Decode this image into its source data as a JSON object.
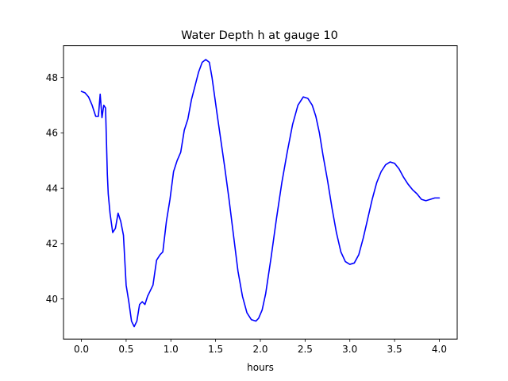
{
  "chart_data": {
    "type": "line",
    "title": "Water Depth h at gauge 10",
    "xlabel": "hours",
    "ylabel": "",
    "xlim": [
      -0.2,
      4.2
    ],
    "ylim": [
      38.55,
      49.15
    ],
    "xticks": [
      "0.0",
      "0.5",
      "1.0",
      "1.5",
      "2.0",
      "2.5",
      "3.0",
      "3.5",
      "4.0"
    ],
    "yticks": [
      "40",
      "42",
      "44",
      "46",
      "48"
    ],
    "grid": false,
    "series": [
      {
        "color": "#0000ff",
        "x": [
          0.0,
          0.04,
          0.08,
          0.12,
          0.16,
          0.19,
          0.21,
          0.23,
          0.25,
          0.27,
          0.29,
          0.3,
          0.32,
          0.35,
          0.38,
          0.41,
          0.44,
          0.47,
          0.5,
          0.53,
          0.56,
          0.59,
          0.62,
          0.65,
          0.68,
          0.71,
          0.74,
          0.77,
          0.8,
          0.84,
          0.88,
          0.91,
          0.95,
          0.99,
          1.03,
          1.07,
          1.11,
          1.15,
          1.19,
          1.23,
          1.27,
          1.31,
          1.35,
          1.39,
          1.43,
          1.46,
          1.49,
          1.52,
          1.56,
          1.6,
          1.65,
          1.7,
          1.75,
          1.8,
          1.85,
          1.9,
          1.95,
          1.98,
          2.02,
          2.06,
          2.12,
          2.18,
          2.24,
          2.3,
          2.36,
          2.42,
          2.48,
          2.53,
          2.58,
          2.62,
          2.66,
          2.7,
          2.75,
          2.8,
          2.85,
          2.9,
          2.95,
          3.0,
          3.05,
          3.1,
          3.15,
          3.2,
          3.25,
          3.3,
          3.35,
          3.4,
          3.45,
          3.5,
          3.55,
          3.6,
          3.65,
          3.7,
          3.75,
          3.8,
          3.85,
          3.9,
          3.95,
          4.0
        ],
        "y": [
          47.5,
          47.45,
          47.3,
          47.0,
          46.6,
          46.6,
          47.4,
          46.55,
          47.0,
          46.9,
          44.5,
          43.8,
          43.1,
          42.4,
          42.55,
          43.1,
          42.8,
          42.3,
          40.5,
          39.9,
          39.2,
          39.0,
          39.2,
          39.8,
          39.9,
          39.8,
          40.1,
          40.3,
          40.5,
          41.4,
          41.6,
          41.7,
          42.8,
          43.6,
          44.6,
          45.0,
          45.3,
          46.1,
          46.5,
          47.2,
          47.7,
          48.2,
          48.55,
          48.65,
          48.55,
          48.0,
          47.3,
          46.6,
          45.7,
          44.8,
          43.6,
          42.3,
          41.0,
          40.1,
          39.5,
          39.25,
          39.2,
          39.3,
          39.6,
          40.2,
          41.5,
          42.9,
          44.2,
          45.3,
          46.3,
          47.0,
          47.3,
          47.25,
          47.0,
          46.6,
          46.0,
          45.2,
          44.3,
          43.3,
          42.4,
          41.7,
          41.35,
          41.25,
          41.3,
          41.6,
          42.2,
          42.9,
          43.6,
          44.2,
          44.6,
          44.85,
          44.95,
          44.9,
          44.7,
          44.4,
          44.15,
          43.95,
          43.8,
          43.6,
          43.55,
          43.6,
          43.65,
          43.65
        ]
      }
    ]
  }
}
